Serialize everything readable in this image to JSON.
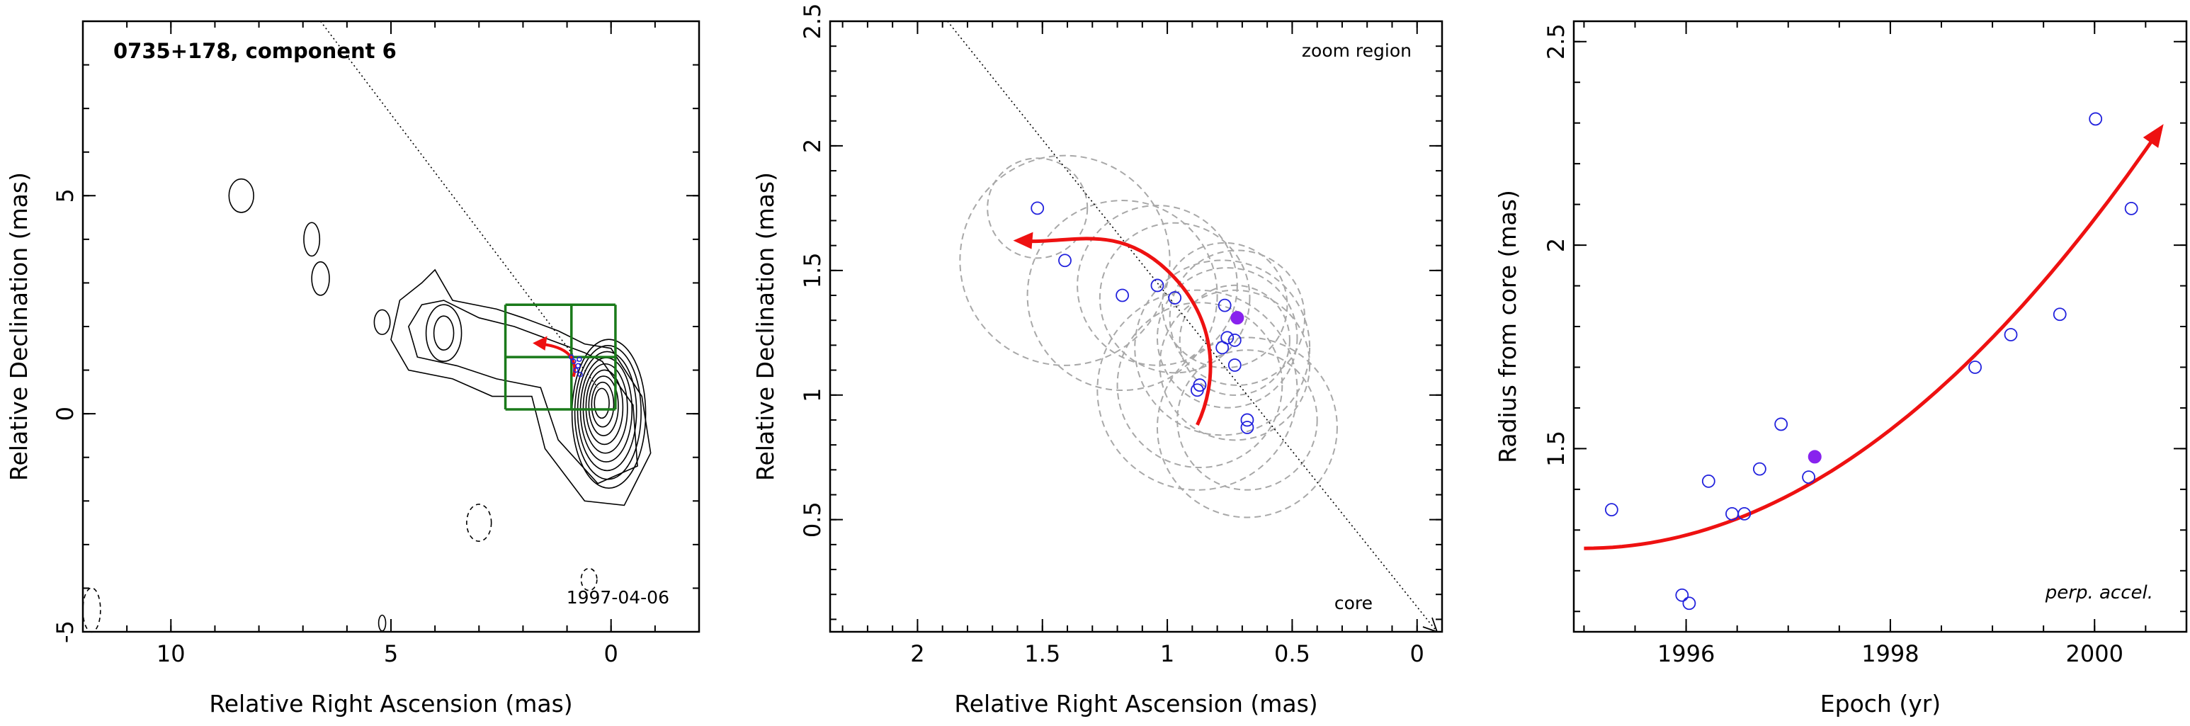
{
  "chart_data": [
    {
      "type": "contour",
      "title": "0735+178, component 6",
      "epoch_label": "1997-04-06",
      "xlabel": "Relative Right Ascension (mas)",
      "ylabel": "Relative Declination (mas)",
      "xlim": [
        12,
        -2
      ],
      "ylim": [
        -5,
        9
      ],
      "x_ticks": [
        10,
        5,
        0
      ],
      "y_ticks": [
        -5,
        0,
        5
      ],
      "colors": {
        "contour": "#000000",
        "grid": "#1a7a1a",
        "track": "#ee1111",
        "points": "#2222dd"
      },
      "contour_islands": [
        {
          "center": [
            8.4,
            5.0
          ],
          "rx": 0.28,
          "ry": 0.38
        },
        {
          "center": [
            6.8,
            4.0
          ],
          "rx": 0.18,
          "ry": 0.38
        },
        {
          "center": [
            6.6,
            3.1
          ],
          "rx": 0.2,
          "ry": 0.38
        },
        {
          "center": [
            5.2,
            2.1
          ],
          "rx": 0.18,
          "ry": 0.28
        },
        {
          "center": [
            5.2,
            -4.8
          ],
          "rx": 0.08,
          "ry": 0.18
        }
      ],
      "negative_contours": [
        {
          "center": [
            3.0,
            -2.5
          ],
          "rx": 0.28,
          "ry": 0.42
        },
        {
          "center": [
            0.5,
            -3.8
          ],
          "rx": 0.18,
          "ry": 0.25
        },
        {
          "center": [
            11.8,
            -4.5
          ],
          "rx": 0.2,
          "ry": 0.5
        }
      ],
      "zoom_grid": {
        "x": [
          2.4,
          0.9,
          -0.1
        ],
        "y": [
          0.1,
          1.3,
          2.5
        ]
      },
      "track_endpoints": [
        [
          0.85,
          0.85
        ],
        [
          1.6,
          1.6
        ]
      ]
    },
    {
      "type": "scatter",
      "annotation": "zoom region",
      "core_label": "core",
      "xlabel": "Relative Right Ascension (mas)",
      "ylabel": "Relative Declination (mas)",
      "xlim": [
        2.35,
        -0.1
      ],
      "ylim": [
        0.05,
        2.5
      ],
      "x_ticks": [
        2,
        1.5,
        1,
        0.5,
        0
      ],
      "y_ticks": [
        0.5,
        1,
        1.5,
        2,
        2.5
      ],
      "colors": {
        "points": "#2222dd",
        "filled_point": "#8822ee",
        "circles": "#a8a8a8",
        "track": "#ee1111"
      },
      "points": [
        [
          1.52,
          1.75
        ],
        [
          1.41,
          1.54
        ],
        [
          1.18,
          1.4
        ],
        [
          1.04,
          1.44
        ],
        [
          0.97,
          1.39
        ],
        [
          0.77,
          1.36
        ],
        [
          0.76,
          1.23
        ],
        [
          0.73,
          1.22
        ],
        [
          0.78,
          1.19
        ],
        [
          0.73,
          1.12
        ],
        [
          0.87,
          1.04
        ],
        [
          0.88,
          1.02
        ],
        [
          0.68,
          0.9
        ],
        [
          0.68,
          0.87
        ]
      ],
      "filled_point": [
        0.72,
        1.31
      ],
      "circles": [
        {
          "center": [
            1.52,
            1.75
          ],
          "r": 0.2
        },
        {
          "center": [
            1.41,
            1.54
          ],
          "r": 0.42
        },
        {
          "center": [
            1.18,
            1.4
          ],
          "r": 0.38
        },
        {
          "center": [
            1.04,
            1.44
          ],
          "r": 0.32
        },
        {
          "center": [
            0.97,
            1.39
          ],
          "r": 0.3
        },
        {
          "center": [
            0.77,
            1.36
          ],
          "r": 0.25
        },
        {
          "center": [
            0.76,
            1.23
          ],
          "r": 0.28
        },
        {
          "center": [
            0.73,
            1.22
          ],
          "r": 0.22
        },
        {
          "center": [
            0.78,
            1.19
          ],
          "r": 0.35
        },
        {
          "center": [
            0.73,
            1.12
          ],
          "r": 0.3
        },
        {
          "center": [
            0.87,
            1.04
          ],
          "r": 0.33
        },
        {
          "center": [
            0.88,
            1.02
          ],
          "r": 0.4
        },
        {
          "center": [
            0.68,
            0.9
          ],
          "r": 0.28
        },
        {
          "center": [
            0.68,
            0.87
          ],
          "r": 0.36
        },
        {
          "center": [
            0.72,
            1.31
          ],
          "r": 0.27
        }
      ],
      "track": [
        [
          0.88,
          0.88
        ],
        [
          0.8,
          1.05
        ],
        [
          0.79,
          1.3
        ],
        [
          1.0,
          1.5
        ],
        [
          1.6,
          1.62
        ]
      ],
      "core_arrow": [
        [
          1.88,
          2.5
        ],
        [
          -0.08,
          0.05
        ]
      ]
    },
    {
      "type": "scatter",
      "annotation": "perp. accel.",
      "xlabel": "Epoch (yr)",
      "ylabel": "Radius from core (mas)",
      "xlim": [
        1994.9,
        2000.9
      ],
      "ylim": [
        1.05,
        2.55
      ],
      "x_ticks": [
        1996,
        1998,
        2000
      ],
      "y_ticks": [
        1.5,
        2,
        2.5
      ],
      "colors": {
        "points": "#2222dd",
        "filled_point": "#8822ee",
        "track": "#ee1111"
      },
      "points": [
        [
          1995.27,
          1.35
        ],
        [
          1995.96,
          1.14
        ],
        [
          1996.03,
          1.12
        ],
        [
          1996.22,
          1.42
        ],
        [
          1996.45,
          1.34
        ],
        [
          1996.57,
          1.34
        ],
        [
          1996.72,
          1.45
        ],
        [
          1996.93,
          1.56
        ],
        [
          1997.2,
          1.43
        ],
        [
          1998.83,
          1.7
        ],
        [
          1999.18,
          1.78
        ],
        [
          1999.66,
          1.83
        ],
        [
          2000.01,
          2.31
        ],
        [
          2000.36,
          2.09
        ]
      ],
      "filled_point": [
        1997.26,
        1.48
      ],
      "fit_curve": {
        "x0": 1995.0,
        "x1": 2000.6,
        "y0": 1.255,
        "y1": 2.27
      }
    }
  ]
}
